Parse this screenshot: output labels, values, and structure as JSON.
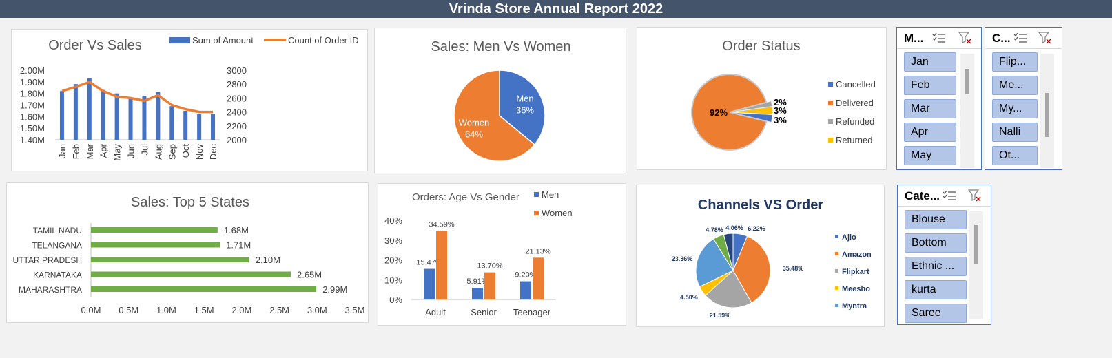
{
  "report": {
    "title": "Vrinda Store Annual Report 2022"
  },
  "slicers": {
    "month": {
      "title": "M...",
      "items": [
        "Jan",
        "Feb",
        "Mar",
        "Apr",
        "May"
      ]
    },
    "channel": {
      "title": "C...",
      "items": [
        "Flip...",
        "Me...",
        "My...",
        "Nalli",
        "Ot..."
      ]
    },
    "category": {
      "title": "Cate...",
      "items": [
        "Blouse",
        "Bottom",
        "Ethnic ...",
        "kurta",
        "Saree"
      ]
    }
  },
  "chart_data": [
    {
      "id": "order-vs-sales",
      "type": "bar",
      "title": "Order Vs Sales",
      "categories": [
        "Jan",
        "Feb",
        "Mar",
        "Apr",
        "May",
        "Jun",
        "Jul",
        "Aug",
        "Sep",
        "Oct",
        "Nov",
        "Dec"
      ],
      "series": [
        {
          "name": "Sum of Amount",
          "type": "bar",
          "axis": "left",
          "values": [
            1.82,
            1.88,
            1.93,
            1.83,
            1.8,
            1.76,
            1.78,
            1.81,
            1.69,
            1.65,
            1.62,
            1.62
          ]
        },
        {
          "name": "Count of Order ID",
          "type": "line",
          "axis": "right",
          "values": [
            2700,
            2760,
            2830,
            2700,
            2620,
            2600,
            2560,
            2640,
            2500,
            2440,
            2400,
            2400
          ]
        }
      ],
      "ylim_left": [
        1.4,
        2.0
      ],
      "yticks_left": [
        "1.40M",
        "1.50M",
        "1.60M",
        "1.70M",
        "1.80M",
        "1.90M",
        "2.00M"
      ],
      "ylim_right": [
        2000,
        3000
      ],
      "yticks_right": [
        "2000",
        "2200",
        "2400",
        "2600",
        "2800",
        "3000"
      ],
      "colors": {
        "bar": "#4472c4",
        "line": "#ed7d31"
      },
      "legend": "top-right"
    },
    {
      "id": "men-vs-women",
      "type": "pie",
      "title": "Sales: Men Vs Women",
      "slices": [
        {
          "name": "Men",
          "value": 36,
          "label": "36%",
          "color": "#4472c4"
        },
        {
          "name": "Women",
          "value": 64,
          "label": "64%",
          "color": "#ed7d31"
        }
      ]
    },
    {
      "id": "order-status",
      "type": "pie",
      "title": "Order Status",
      "slices": [
        {
          "name": "Cancelled",
          "value": 3,
          "label": "3%",
          "color": "#4472c4"
        },
        {
          "name": "Delivered",
          "value": 92,
          "label": "92%",
          "color": "#ed7d31"
        },
        {
          "name": "Refunded",
          "value": 2,
          "label": "2%",
          "color": "#a5a5a5"
        },
        {
          "name": "Returned",
          "value": 3,
          "label": "3%",
          "color": "#ffc000"
        }
      ],
      "legend": "right"
    },
    {
      "id": "top-5-states",
      "type": "bar",
      "orientation": "horizontal",
      "title": "Sales: Top 5 States",
      "categories": [
        "TAMIL NADU",
        "TELANGANA",
        "UTTAR PRADESH",
        "KARNATAKA",
        "MAHARASHTRA"
      ],
      "values": [
        1.68,
        1.71,
        2.1,
        2.65,
        2.99
      ],
      "labels": [
        "1.68M",
        "1.71M",
        "2.10M",
        "2.65M",
        "2.99M"
      ],
      "xlim": [
        0,
        3.5
      ],
      "xticks": [
        "0.0M",
        "0.5M",
        "1.0M",
        "1.5M",
        "2.0M",
        "2.5M",
        "3.0M",
        "3.5M"
      ],
      "color": "#70ad47"
    },
    {
      "id": "age-vs-gender",
      "type": "bar",
      "title": "Orders: Age Vs  Gender",
      "categories": [
        "Adult",
        "Senior",
        "Teenager"
      ],
      "series": [
        {
          "name": "Men",
          "values": [
            15.47,
            5.91,
            9.2
          ],
          "labels": [
            "15.47%",
            "5.91%",
            "9.20%"
          ],
          "color": "#4472c4"
        },
        {
          "name": "Women",
          "values": [
            34.59,
            13.7,
            21.13
          ],
          "labels": [
            "34.59%",
            "13.70%",
            "21.13%"
          ],
          "color": "#ed7d31"
        }
      ],
      "ylim": [
        0,
        40
      ],
      "yticks": [
        "0%",
        "10%",
        "20%",
        "30%",
        "40%"
      ],
      "legend": "top-right"
    },
    {
      "id": "channels-vs-order",
      "type": "pie",
      "title": "Channels VS Order",
      "slices": [
        {
          "name": "Ajio",
          "value": 6.22,
          "label": "6.22%",
          "color": "#4472c4"
        },
        {
          "name": "Amazon",
          "value": 35.48,
          "label": "35.48%",
          "color": "#ed7d31"
        },
        {
          "name": "Flipkart",
          "value": 21.59,
          "label": "21.59%",
          "color": "#a5a5a5"
        },
        {
          "name": "Meesho",
          "value": 4.5,
          "label": "4.50%",
          "color": "#ffc000"
        },
        {
          "name": "Myntra",
          "value": 23.36,
          "label": "23.36%",
          "color": "#5b9bd5"
        },
        {
          "name": "",
          "value": 4.78,
          "label": "4.78%",
          "color": "#70ad47"
        },
        {
          "name": "",
          "value": 4.06,
          "label": "4.06%",
          "color": "#264478"
        }
      ],
      "legend_entries": [
        "Ajio",
        "Amazon",
        "Flipkart",
        "Meesho",
        "Myntra"
      ],
      "legend": "right"
    }
  ]
}
